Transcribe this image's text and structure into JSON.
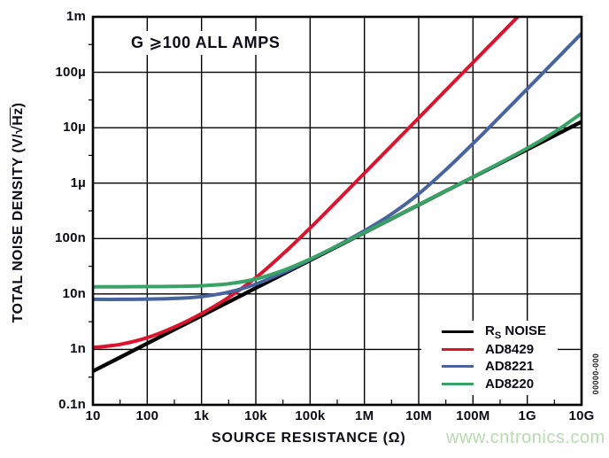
{
  "annotation": "G ⩾100 ALL AMPS",
  "watermark": "www.cntronics.com",
  "figure_number": "00000-000",
  "axes": {
    "x_title": "SOURCE RESISTANCE (Ω)",
    "y_title_pre": "TOTAL NOISE DENSITY (V/√",
    "y_title_overline": "Hz",
    "y_title_post": ")"
  },
  "chart_data": {
    "type": "line",
    "title": "",
    "xlabel": "SOURCE RESISTANCE (Ω)",
    "ylabel": "TOTAL NOISE DENSITY (V/√Hz)",
    "x_scale": "log",
    "y_scale": "log",
    "x_range": [
      10,
      10000000000
    ],
    "y_range": [
      1e-10,
      0.001
    ],
    "grid": "decade",
    "legend_position": "bottom-right",
    "x_ticks": [
      10,
      100,
      1000,
      10000,
      100000,
      1000000,
      10000000,
      100000000,
      1000000000,
      10000000000
    ],
    "x_tick_labels": [
      "10",
      "100",
      "1k",
      "10k",
      "100k",
      "1M",
      "10M",
      "100M",
      "1G",
      "10G"
    ],
    "y_ticks": [
      0.001,
      0.0001,
      1e-05,
      1e-06,
      1e-07,
      1e-08,
      1e-09,
      1e-10
    ],
    "y_tick_labels": [
      "1m",
      "100µ",
      "10µ",
      "1µ",
      "100n",
      "10n",
      "1n",
      "0.1n"
    ],
    "x_values": [
      10,
      31.6,
      100,
      316,
      1000,
      3160,
      10000,
      31600,
      100000,
      316000,
      1000000,
      3160000,
      10000000,
      31600000,
      100000000,
      316000000,
      1000000000,
      3160000000,
      10000000000
    ],
    "series": [
      {
        "name": "RS NOISE",
        "label_pre": "R",
        "label_sub": "S",
        "label_post": " NOISE",
        "color": "#000000",
        "line_width": 4.3,
        "values": [
          4.05e-10,
          7.2e-10,
          1.28e-09,
          2.28e-09,
          4.05e-09,
          7.2e-09,
          1.28e-08,
          2.28e-08,
          4.05e-08,
          7.2e-08,
          1.28e-07,
          2.28e-07,
          4.05e-07,
          7.2e-07,
          1.28e-06,
          2.28e-06,
          4.05e-06,
          7.2e-06,
          1.28e-05
        ]
      },
      {
        "name": "AD8429",
        "label_pre": "AD8429",
        "label_sub": "",
        "label_post": "",
        "color": "#d8142f",
        "line_width": 4,
        "values": [
          1.08e-09,
          1.23e-09,
          1.63e-09,
          2.53e-09,
          4.43e-09,
          8.68e-09,
          1.97e-08,
          5.26e-08,
          1.55e-07,
          4.8e-07,
          1.51e-06,
          4.75e-06,
          1.5e-05,
          4.74e-05,
          0.00015,
          0.000474,
          0.0015,
          0.00474,
          0.015
        ]
      },
      {
        "name": "AD8221",
        "label_pre": "AD8221",
        "label_sub": "",
        "label_post": "",
        "color": "#48649f",
        "line_width": 4,
        "values": [
          8e-09,
          8e-09,
          8.1e-09,
          8.3e-09,
          8.97e-09,
          1.08e-08,
          1.51e-08,
          2.42e-08,
          4.16e-08,
          7.42e-08,
          1.38e-07,
          2.77e-07,
          6.4e-07,
          1.74e-06,
          5.16e-06,
          1.6e-05,
          5.02e-05,
          0.000158,
          0.0005
        ]
      },
      {
        "name": "AD8220",
        "label_pre": "AD8220",
        "label_sub": "",
        "label_post": "",
        "color": "#39a266",
        "line_width": 4,
        "values": [
          1.35e-08,
          1.35e-08,
          1.36e-08,
          1.37e-08,
          1.41e-08,
          1.53e-08,
          1.86e-08,
          2.65e-08,
          4.27e-08,
          7.33e-08,
          1.29e-07,
          2.28e-07,
          4.06e-07,
          7.22e-07,
          1.29e-06,
          2.32e-06,
          4.26e-06,
          8.3e-06,
          1.82e-05
        ]
      }
    ]
  }
}
